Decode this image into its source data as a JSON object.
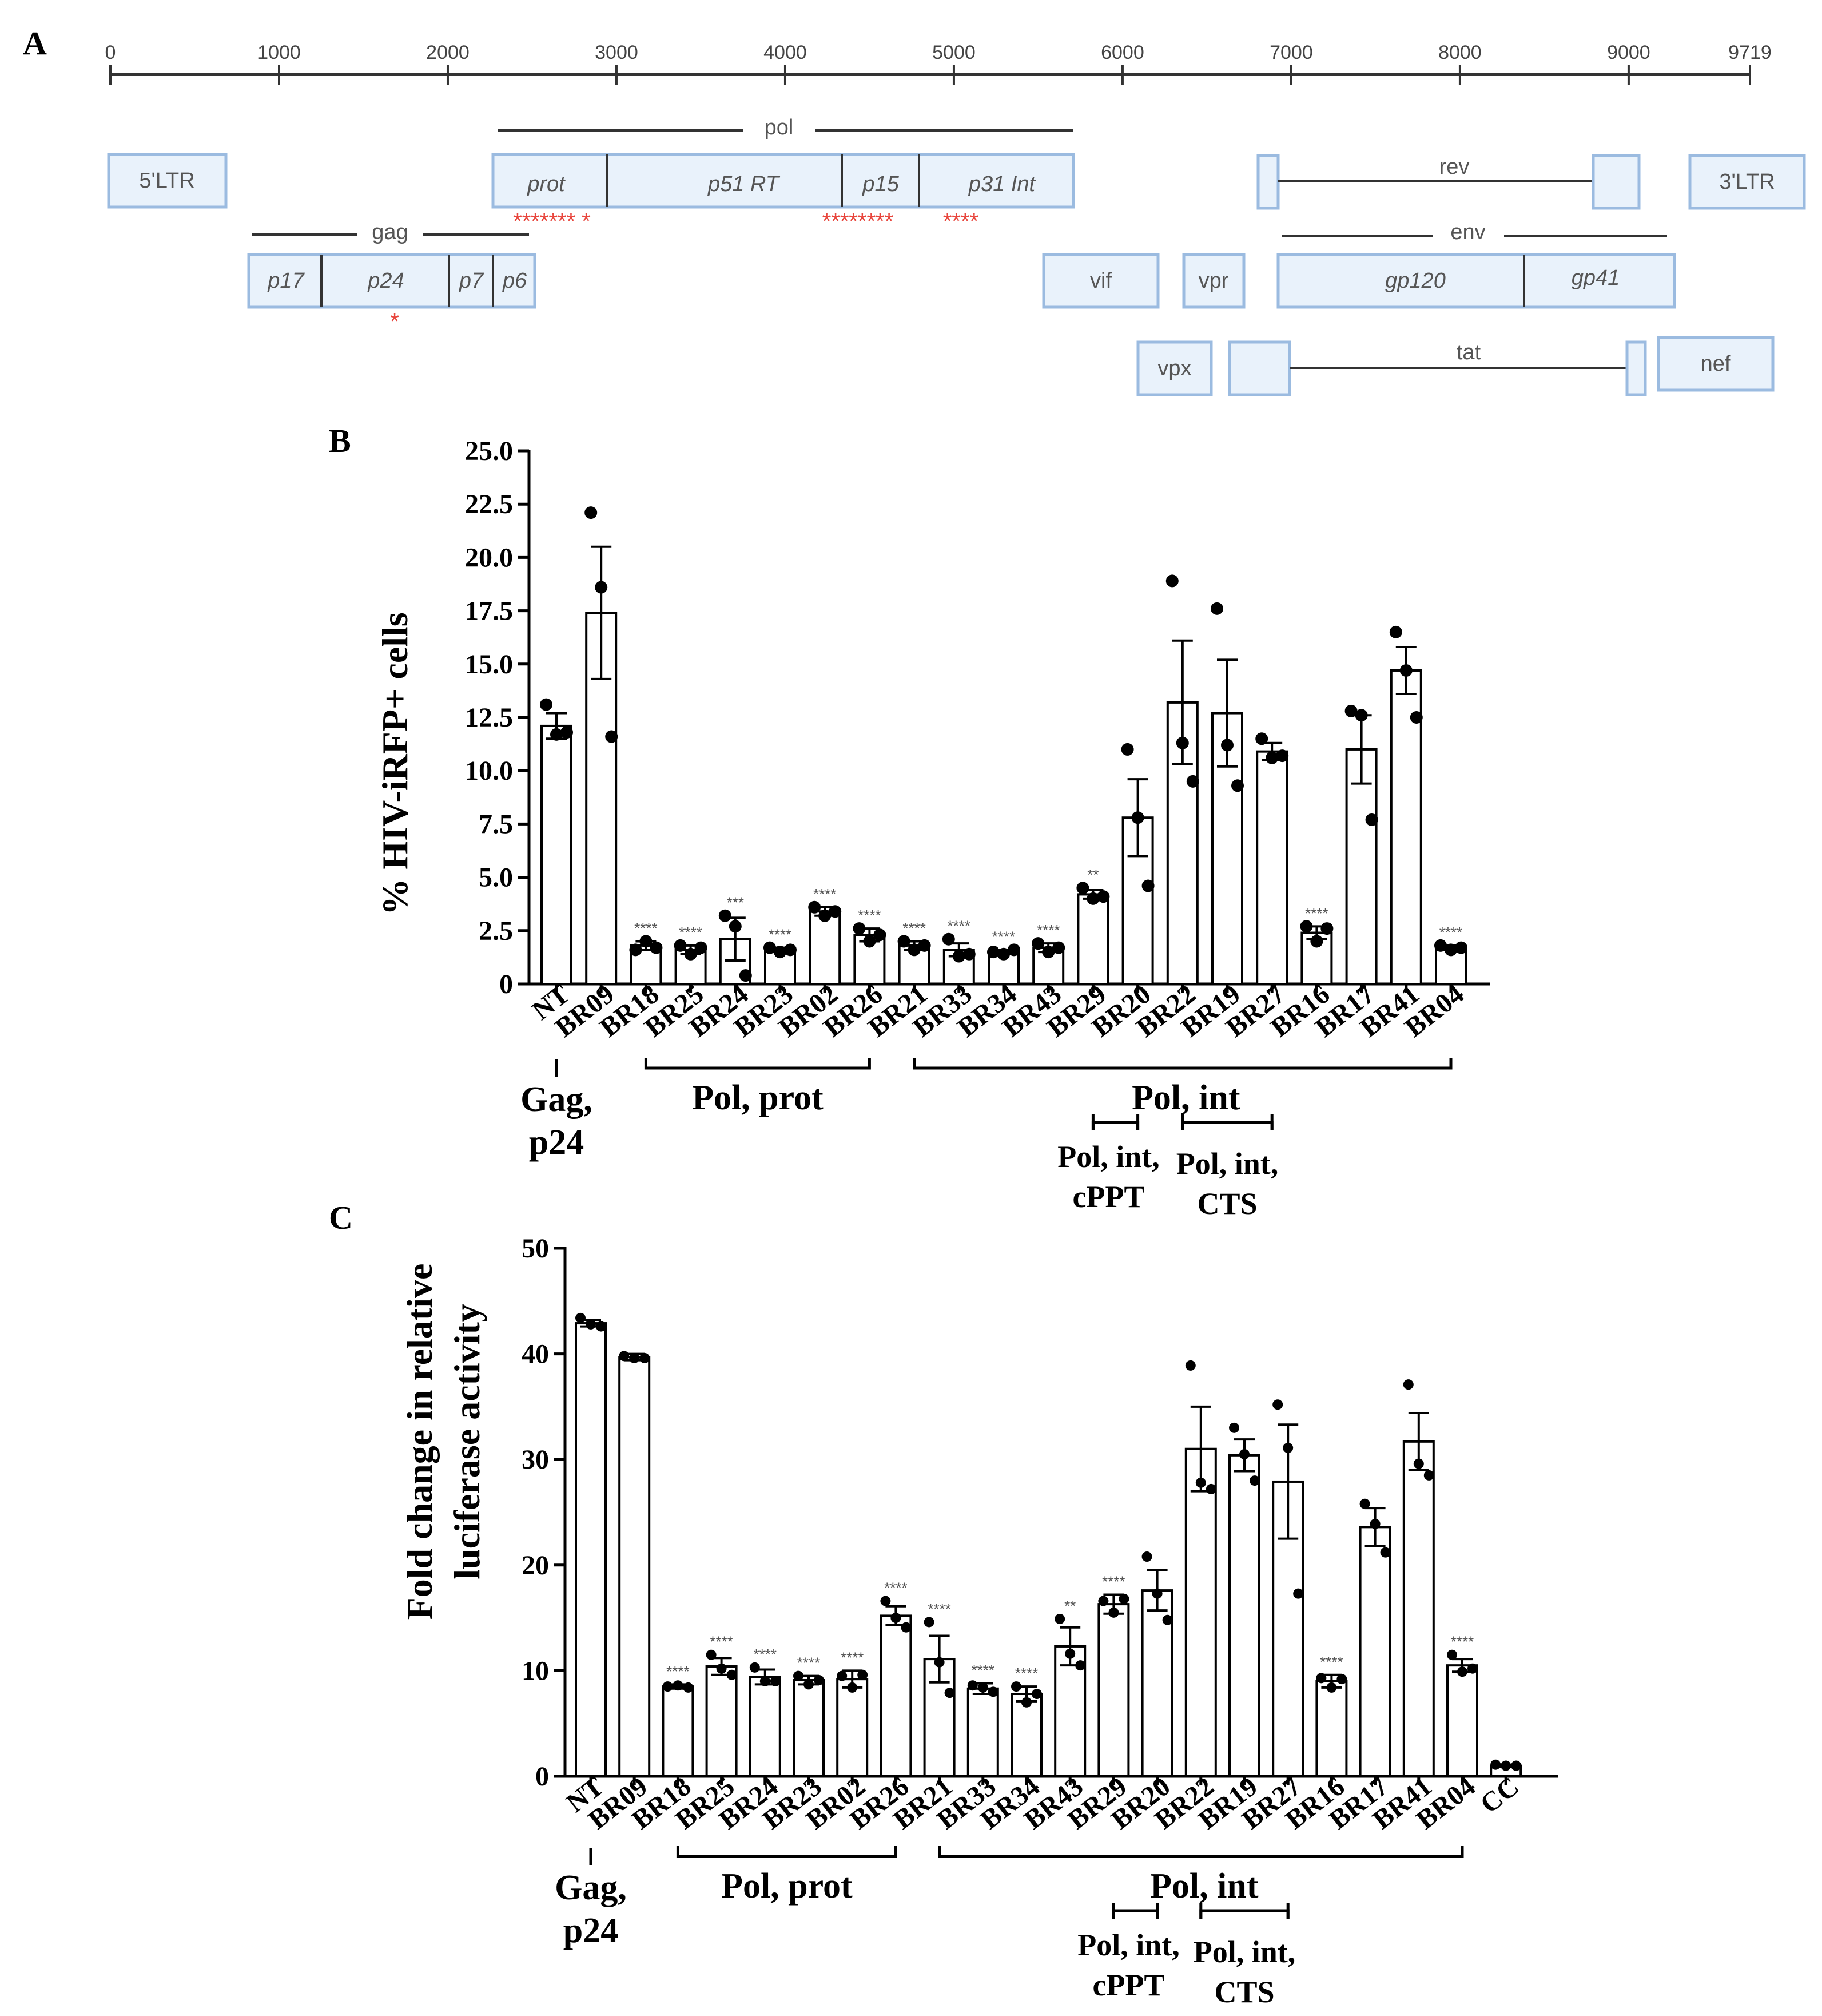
{
  "panels": {
    "a": "A",
    "b": "B",
    "c": "C"
  },
  "genome_map": {
    "ruler_ticks": [
      "0",
      "1000",
      "2000",
      "3000",
      "4000",
      "5000",
      "6000",
      "7000",
      "8000",
      "9000",
      "9719"
    ],
    "labels": {
      "pol": "pol",
      "gag": "gag",
      "rev": "rev",
      "env": "env",
      "tat": "tat",
      "ltr5": "5'LTR",
      "ltr3": "3'LTR",
      "prot": "prot",
      "p51rt": "p51 RT",
      "p15": "p15",
      "p31int": "p31 Int",
      "p17": "p17",
      "p24": "p24",
      "p7": "p7",
      "p6": "p6",
      "vif": "vif",
      "vpr": "vpr",
      "gp120": "gp120",
      "gp41": "gp41",
      "vpx": "vpx",
      "nef": "nef"
    },
    "asterisks": {
      "prot": "******* *",
      "rt": "********",
      "int": "****",
      "p24": "*"
    },
    "asterisk_color": "#e8453c"
  },
  "chart_data": [
    {
      "type": "bar",
      "title": "",
      "xlabel": "",
      "ylabel": "% HIV-iRFP+ cells",
      "ylim": [
        0,
        25
      ],
      "yticks": [
        "0",
        "2.5",
        "5.0",
        "7.5",
        "10.0",
        "12.5",
        "15.0",
        "17.5",
        "20.0",
        "22.5",
        "25.0"
      ],
      "categories": [
        "NT",
        "BR09",
        "BR18",
        "BR25",
        "BR24",
        "BR23",
        "BR02",
        "BR26",
        "BR21",
        "BR33",
        "BR34",
        "BR43",
        "BR29",
        "BR20",
        "BR22",
        "BR19",
        "BR27",
        "BR16",
        "BR17",
        "BR41",
        "BR04"
      ],
      "values": [
        12.1,
        17.4,
        1.8,
        1.6,
        2.1,
        1.6,
        3.4,
        2.3,
        1.8,
        1.6,
        1.5,
        1.7,
        4.2,
        7.8,
        13.2,
        12.7,
        10.9,
        2.4,
        11.0,
        14.7,
        1.7
      ],
      "errors": [
        0.6,
        3.1,
        0.2,
        0.2,
        1.0,
        0.1,
        0.2,
        0.3,
        0.2,
        0.3,
        0.1,
        0.2,
        0.2,
        1.8,
        2.9,
        2.5,
        0.4,
        0.3,
        1.6,
        1.1,
        0.1
      ],
      "points": [
        [
          13.1,
          11.7,
          11.8
        ],
        [
          22.1,
          18.6,
          11.6
        ],
        [
          1.6,
          2.0,
          1.7
        ],
        [
          1.8,
          1.4,
          1.7
        ],
        [
          3.2,
          2.7,
          0.4
        ],
        [
          1.7,
          1.5,
          1.6
        ],
        [
          3.6,
          3.2,
          3.4
        ],
        [
          2.6,
          2.0,
          2.3
        ],
        [
          2.0,
          1.6,
          1.8
        ],
        [
          2.1,
          1.3,
          1.4
        ],
        [
          1.5,
          1.4,
          1.6
        ],
        [
          1.9,
          1.5,
          1.7
        ],
        [
          4.5,
          4.0,
          4.1
        ],
        [
          11.0,
          7.8,
          4.6
        ],
        [
          18.9,
          11.3,
          9.5
        ],
        [
          17.6,
          11.2,
          9.3
        ],
        [
          11.5,
          10.6,
          10.7
        ],
        [
          2.7,
          2.0,
          2.6
        ],
        [
          12.8,
          12.6,
          7.7
        ],
        [
          16.5,
          14.7,
          12.5
        ],
        [
          1.8,
          1.6,
          1.7
        ]
      ],
      "significance": [
        "",
        "",
        "****",
        "****",
        "***",
        "****",
        "****",
        "****",
        "****",
        "****",
        "****",
        "****",
        "**",
        "",
        "",
        "",
        "",
        "****",
        "",
        "",
        "****"
      ],
      "groups": [
        {
          "label": "Gag, p24",
          "line1": "Gag,",
          "line2": "p24"
        },
        {
          "label": "Pol, prot"
        },
        {
          "label": "Pol, int"
        },
        {
          "label": "Pol, int, cPPT",
          "line1": "Pol, int,",
          "line2": "cPPT"
        },
        {
          "label": "Pol, int, CTS",
          "line1": "Pol, int,",
          "line2": "CTS"
        }
      ]
    },
    {
      "type": "bar",
      "title": "",
      "xlabel": "",
      "ylabel_line1": "Fold change in relative",
      "ylabel_line2": "luciferase activity",
      "ylim": [
        0,
        50
      ],
      "yticks": [
        "0",
        "10",
        "20",
        "30",
        "40",
        "50"
      ],
      "categories": [
        "NT",
        "BR09",
        "BR18",
        "BR25",
        "BR24",
        "BR23",
        "BR02",
        "BR26",
        "BR21",
        "BR33",
        "BR34",
        "BR43",
        "BR29",
        "BR20",
        "BR22",
        "BR19",
        "BR27",
        "BR16",
        "BR17",
        "BR41",
        "BR04",
        "CC"
      ],
      "values": [
        42.9,
        39.7,
        8.5,
        10.4,
        9.4,
        9.1,
        9.2,
        15.2,
        11.1,
        8.3,
        7.8,
        12.3,
        16.3,
        17.6,
        31.0,
        30.4,
        27.9,
        9.0,
        23.6,
        31.7,
        10.5,
        1.0
      ],
      "errors": [
        0.3,
        0.3,
        0.2,
        0.8,
        0.7,
        0.4,
        0.8,
        0.9,
        2.2,
        0.5,
        0.7,
        1.8,
        0.9,
        1.9,
        4.0,
        1.5,
        5.4,
        0.6,
        1.8,
        2.7,
        0.6,
        0.1
      ],
      "points": [
        [
          43.4,
          42.8,
          42.6
        ],
        [
          39.8,
          39.6,
          39.6
        ],
        [
          8.5,
          8.6,
          8.4
        ],
        [
          11.5,
          10.2,
          9.6
        ],
        [
          10.3,
          9.0,
          9.0
        ],
        [
          9.5,
          8.7,
          9.1
        ],
        [
          9.5,
          8.4,
          9.6
        ],
        [
          16.6,
          15.0,
          14.1
        ],
        [
          14.6,
          10.8,
          7.9
        ],
        [
          8.6,
          8.4,
          8.0
        ],
        [
          8.5,
          7.0,
          7.8
        ],
        [
          14.9,
          11.6,
          10.5
        ],
        [
          16.6,
          15.5,
          16.8
        ],
        [
          20.8,
          17.3,
          14.8
        ],
        [
          38.9,
          27.8,
          27.2
        ],
        [
          33.0,
          30.5,
          28.0
        ],
        [
          35.2,
          31.1,
          17.3
        ],
        [
          9.3,
          8.4,
          9.2
        ],
        [
          25.8,
          23.9,
          21.2
        ],
        [
          37.1,
          29.6,
          28.5
        ],
        [
          11.5,
          9.9,
          10.2
        ],
        [
          1.1,
          1.0,
          1.0
        ]
      ],
      "significance": [
        "",
        "",
        "****",
        "****",
        "****",
        "****",
        "****",
        "****",
        "****",
        "****",
        "****",
        "**",
        "****",
        "",
        "",
        "",
        "",
        "****",
        "",
        "",
        "****",
        ""
      ],
      "groups": [
        {
          "label": "Gag, p24",
          "line1": "Gag,",
          "line2": "p24"
        },
        {
          "label": "Pol, prot"
        },
        {
          "label": "Pol, int"
        },
        {
          "label": "Pol, int, cPPT",
          "line1": "Pol, int,",
          "line2": "cPPT"
        },
        {
          "label": "Pol, int, CTS",
          "line1": "Pol, int,",
          "line2": "CTS"
        }
      ]
    }
  ]
}
